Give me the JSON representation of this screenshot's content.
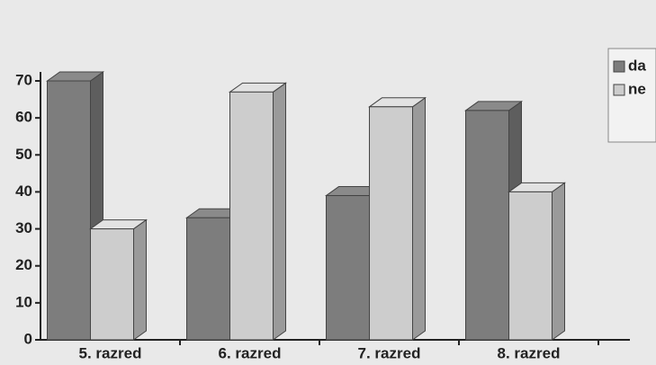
{
  "chart_data": {
    "type": "bar3d",
    "categories": [
      "5. razred",
      "6. razred",
      "7. razred",
      "8. razred"
    ],
    "series": [
      {
        "name": "da",
        "color": "#7d7d7d",
        "values": [
          70,
          33,
          39,
          62
        ]
      },
      {
        "name": "ne",
        "color": "#cdcdcd",
        "values": [
          30,
          67,
          63,
          40
        ]
      }
    ],
    "ylim": [
      0,
      70
    ],
    "yticks": [
      0,
      10,
      20,
      30,
      40,
      50,
      60,
      70
    ]
  }
}
